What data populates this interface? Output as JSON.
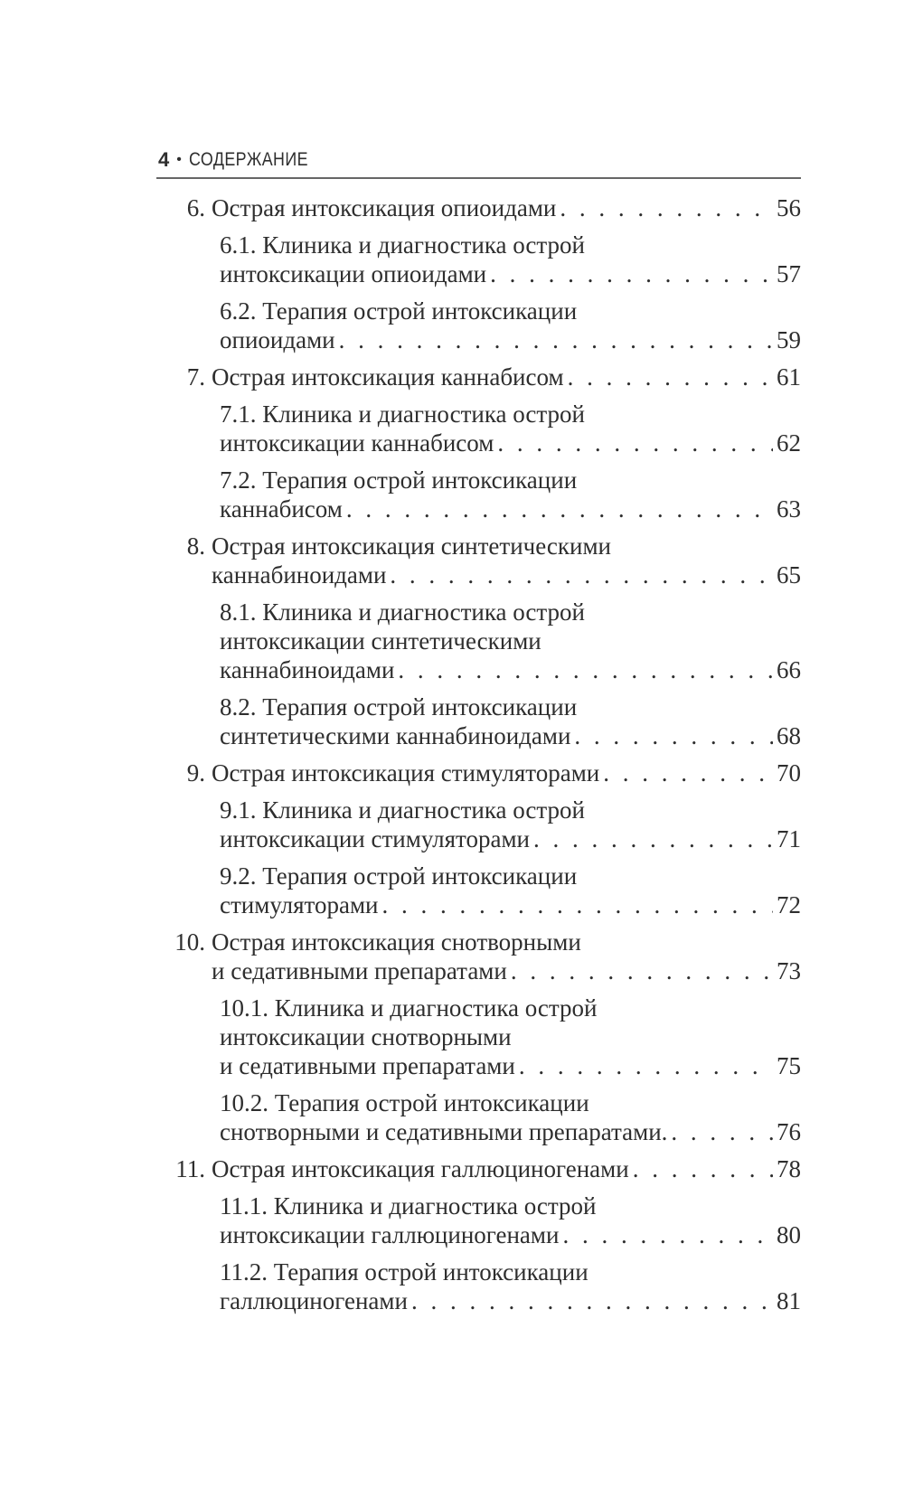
{
  "header": {
    "page_number": "4",
    "bullet": "•",
    "title": "СОДЕРЖАНИЕ"
  },
  "toc": [
    {
      "level": 1,
      "num": "6.",
      "lines": [
        "Острая интоксикация опиоидами"
      ],
      "page": "56"
    },
    {
      "level": 2,
      "lines": [
        "6.1. Клиника и диагностика острой",
        "интоксикации опиоидами"
      ],
      "page": "57"
    },
    {
      "level": 2,
      "lines": [
        "6.2. Терапия острой интоксикации",
        "опиоидами"
      ],
      "page": "59"
    },
    {
      "level": 1,
      "num": "7.",
      "lines": [
        "Острая интоксикация каннабисом"
      ],
      "page": "61"
    },
    {
      "level": 2,
      "lines": [
        "7.1. Клиника и диагностика острой",
        "интоксикации каннабисом"
      ],
      "page": "62"
    },
    {
      "level": 2,
      "lines": [
        "7.2. Терапия острой интоксикации",
        "каннабисом"
      ],
      "page": "63"
    },
    {
      "level": 1,
      "num": "8.",
      "lines": [
        "Острая интоксикация синтетическими",
        "каннабиноидами"
      ],
      "page": "65"
    },
    {
      "level": 2,
      "lines": [
        "8.1. Клиника и диагностика острой",
        "интоксикации синтетическими",
        "каннабиноидами"
      ],
      "page": "66"
    },
    {
      "level": 2,
      "lines": [
        "8.2. Терапия острой интоксикации",
        "синтетическими каннабиноидами"
      ],
      "page": "68"
    },
    {
      "level": 1,
      "num": "9.",
      "lines": [
        "Острая интоксикация стимуляторами"
      ],
      "page": "70"
    },
    {
      "level": 2,
      "lines": [
        "9.1. Клиника и диагностика острой",
        "интоксикации стимуляторами"
      ],
      "page": "71"
    },
    {
      "level": 2,
      "lines": [
        "9.2. Терапия острой интоксикации",
        "стимуляторами"
      ],
      "page": "72"
    },
    {
      "level": 1,
      "num": "10.",
      "lines": [
        "Острая интоксикация снотворными",
        "и седативными препаратами"
      ],
      "page": "73"
    },
    {
      "level": 2,
      "lines": [
        "10.1. Клиника и диагностика острой",
        "интоксикации снотворными",
        "и седативными препаратами"
      ],
      "page": "75"
    },
    {
      "level": 2,
      "lines": [
        "10.2. Терапия острой интоксикации",
        "снотворными и седативными препаратами."
      ],
      "page": "76"
    },
    {
      "level": 1,
      "num": "11.",
      "lines": [
        "Острая интоксикация галлюциногенами"
      ],
      "page": "78"
    },
    {
      "level": 2,
      "lines": [
        "11.1. Клиника и диагностика острой",
        "интоксикации галлюциногенами"
      ],
      "page": "80"
    },
    {
      "level": 2,
      "lines": [
        "11.2. Терапия острой интоксикации",
        "галлюциногенами"
      ],
      "page": "81"
    }
  ]
}
